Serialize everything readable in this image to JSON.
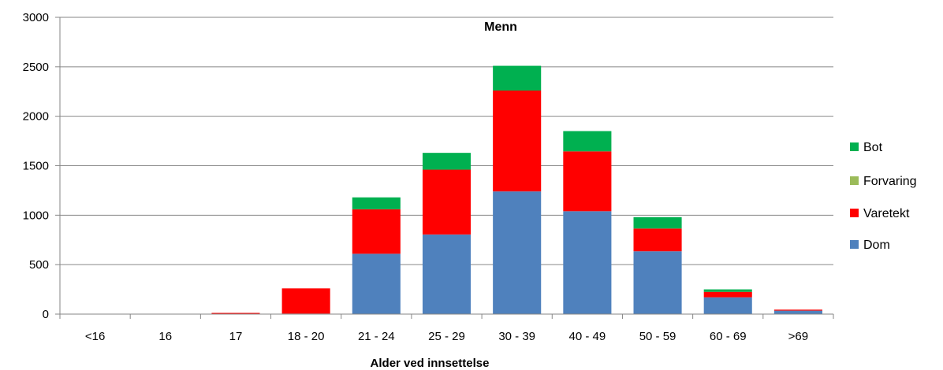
{
  "chart_data": {
    "type": "bar",
    "stacked": true,
    "title": "Menn",
    "xlabel": "Alder ved innsettelse",
    "ylabel": "",
    "ylim": [
      0,
      3000
    ],
    "yticks": [
      0,
      500,
      1000,
      1500,
      2000,
      2500,
      3000
    ],
    "grid": true,
    "legend_position": "right",
    "categories": [
      "<16",
      "16",
      "17",
      "18 - 20",
      "21 - 24",
      "25 - 29",
      "30 - 39",
      "40 - 49",
      "50 - 59",
      "60 - 69",
      ">69"
    ],
    "series": [
      {
        "name": "Dom",
        "color": "#4F81BD",
        "values": [
          0,
          0,
          0,
          5,
          610,
          805,
          1240,
          1040,
          635,
          170,
          35
        ]
      },
      {
        "name": "Varetekt",
        "color": "#FF0000",
        "values": [
          0,
          0,
          12,
          255,
          450,
          655,
          1020,
          605,
          230,
          55,
          10
        ]
      },
      {
        "name": "Forvaring",
        "color": "#9BBB59",
        "values": [
          0,
          0,
          0,
          0,
          0,
          0,
          0,
          0,
          0,
          0,
          0
        ]
      },
      {
        "name": "Bot",
        "color": "#00B050",
        "values": [
          0,
          0,
          0,
          0,
          120,
          170,
          250,
          205,
          115,
          25,
          0
        ]
      }
    ],
    "legend_order": [
      "Bot",
      "Forvaring",
      "Varetekt",
      "Dom"
    ]
  }
}
